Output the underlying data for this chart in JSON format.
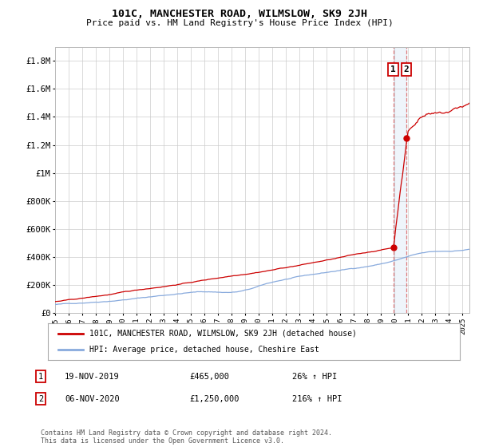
{
  "title": "101C, MANCHESTER ROAD, WILMSLOW, SK9 2JH",
  "subtitle": "Price paid vs. HM Land Registry's House Price Index (HPI)",
  "legend_line1": "101C, MANCHESTER ROAD, WILMSLOW, SK9 2JH (detached house)",
  "legend_line2": "HPI: Average price, detached house, Cheshire East",
  "annotation1_date": "19-NOV-2019",
  "annotation1_price": "£465,000",
  "annotation1_hpi": "26% ↑ HPI",
  "annotation2_date": "06-NOV-2020",
  "annotation2_price": "£1,250,000",
  "annotation2_hpi": "216% ↑ HPI",
  "footer": "Contains HM Land Registry data © Crown copyright and database right 2024.\nThis data is licensed under the Open Government Licence v3.0.",
  "hpi_color": "#88aadd",
  "price_color": "#cc0000",
  "marker_color": "#cc0000",
  "vline_color": "#dd6666",
  "span_color": "#ddaaaa",
  "background_color": "#ffffff",
  "grid_color": "#cccccc",
  "ylim": [
    0,
    1900000
  ],
  "yticks": [
    0,
    200000,
    400000,
    600000,
    800000,
    1000000,
    1200000,
    1400000,
    1600000,
    1800000
  ],
  "xlim_start": 1995.0,
  "xlim_end": 2025.5,
  "xticks": [
    1995,
    1996,
    1997,
    1998,
    1999,
    2000,
    2001,
    2002,
    2003,
    2004,
    2005,
    2006,
    2007,
    2008,
    2009,
    2010,
    2011,
    2012,
    2013,
    2014,
    2015,
    2016,
    2017,
    2018,
    2019,
    2020,
    2021,
    2022,
    2023,
    2024,
    2025
  ],
  "point1_x": 2019.89,
  "point1_y": 465000,
  "point2_x": 2020.85,
  "point2_y": 1250000,
  "vline1_x": 2019.89,
  "vline2_x": 2020.85
}
